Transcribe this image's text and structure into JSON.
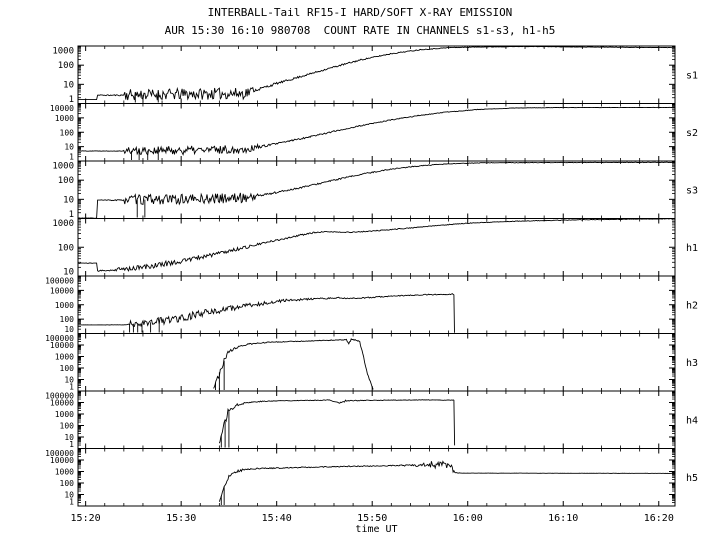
{
  "page": {
    "background": "#ffffff",
    "foreground": "#000000"
  },
  "header": {
    "title": "INTERBALL-Tail RF15-I HARD/SOFT X-RAY EMISSION",
    "subtitle": "AUR 15:30 16:10 980708  COUNT RATE IN CHANNELS s1-s3, h1-h5"
  },
  "chart_data": {
    "type": "line",
    "title": "INTERBALL-Tail RF15-I HARD/SOFT X-RAY EMISSION",
    "subtitle": "AUR 15:30 16:10 980708  COUNT RATE IN CHANNELS s1-s3, h1-h5",
    "xlabel": "time UT",
    "ylabel": "",
    "x_axis": {
      "start_minutes_after_1520": -0.8,
      "end_minutes_after_1520": 61.7,
      "minor_tick_every_minutes": 2,
      "major_ticks": [
        {
          "t": 0,
          "label": "15:20"
        },
        {
          "t": 10,
          "label": "15:30"
        },
        {
          "t": 20,
          "label": "15:40"
        },
        {
          "t": 30,
          "label": "15:50"
        },
        {
          "t": 40,
          "label": "16:00"
        },
        {
          "t": 50,
          "label": "16:10"
        },
        {
          "t": 60,
          "label": "16:20"
        }
      ]
    },
    "panels": [
      {
        "label": "s1",
        "y_log_range": [
          0,
          3
        ],
        "noise_seed": 11,
        "y_tick_labels": [
          {
            "exp": 3,
            "label": "1000"
          },
          {
            "exp": 2,
            "label": "100"
          },
          {
            "exp": 1,
            "label": "10"
          },
          {
            "exp": 0,
            "label": "1"
          }
        ],
        "points": [
          [
            -0.8,
            1.6,
            0
          ],
          [
            1.15,
            1.6,
            0
          ],
          [
            1.25,
            2.7,
            0.03
          ],
          [
            3.8,
            2.7,
            0.03
          ],
          [
            4.0,
            2.8,
            0.3
          ],
          [
            9,
            3.0,
            0.3
          ],
          [
            16.5,
            3.4,
            0.28
          ],
          [
            17.5,
            4.5,
            0.07
          ],
          [
            20,
            11,
            0.05
          ],
          [
            23,
            30,
            0.04
          ],
          [
            26,
            80,
            0.04
          ],
          [
            29,
            200,
            0.03
          ],
          [
            32,
            400,
            0.025
          ],
          [
            35,
            640,
            0.02
          ],
          [
            38,
            820,
            0.015
          ],
          [
            41,
            890,
            0.012
          ],
          [
            46,
            940,
            0.01
          ],
          [
            61.7,
            820,
            0.008
          ]
        ],
        "dropout_times": [
          5.2,
          6.0,
          7.6
        ]
      },
      {
        "label": "s2",
        "y_log_range": [
          0,
          4
        ],
        "noise_seed": 22,
        "y_tick_labels": [
          {
            "exp": 4,
            "label": "10000"
          },
          {
            "exp": 3,
            "label": "1000"
          },
          {
            "exp": 2,
            "label": "100"
          },
          {
            "exp": 1,
            "label": "10"
          },
          {
            "exp": 0,
            "label": "1"
          }
        ],
        "points": [
          [
            -0.8,
            5,
            0.02
          ],
          [
            3.8,
            5,
            0.02
          ],
          [
            4,
            5.2,
            0.3
          ],
          [
            10,
            5.5,
            0.3
          ],
          [
            16.5,
            6.5,
            0.26
          ],
          [
            18,
            9,
            0.08
          ],
          [
            20,
            16,
            0.06
          ],
          [
            23,
            42,
            0.05
          ],
          [
            26,
            115,
            0.04
          ],
          [
            29,
            300,
            0.035
          ],
          [
            32,
            720,
            0.03
          ],
          [
            35,
            1500,
            0.025
          ],
          [
            38,
            2600,
            0.02
          ],
          [
            41,
            3800,
            0.015
          ],
          [
            45,
            4900,
            0.012
          ],
          [
            50,
            5200,
            0.01
          ],
          [
            61.7,
            5300,
            0.008
          ]
        ],
        "dropout_times": [
          4.8,
          5.6,
          6.5,
          7.6
        ]
      },
      {
        "label": "s3",
        "y_log_range": [
          0,
          3
        ],
        "noise_seed": 33,
        "y_tick_labels": [
          {
            "exp": 3,
            "label": "1000"
          },
          {
            "exp": 2,
            "label": "100"
          },
          {
            "exp": 1,
            "label": "10"
          },
          {
            "exp": 0,
            "label": "1"
          }
        ],
        "points": [
          [
            -0.8,
            1.05,
            0.01
          ],
          [
            1.15,
            1.05,
            0.01
          ],
          [
            1.25,
            9,
            0.03
          ],
          [
            3.8,
            9,
            0.03
          ],
          [
            4,
            9.5,
            0.26
          ],
          [
            10,
            10,
            0.26
          ],
          [
            16.5,
            12,
            0.24
          ],
          [
            18,
            15,
            0.06
          ],
          [
            20,
            23,
            0.05
          ],
          [
            23,
            46,
            0.04
          ],
          [
            26,
            100,
            0.035
          ],
          [
            29,
            210,
            0.03
          ],
          [
            32,
            380,
            0.025
          ],
          [
            35,
            560,
            0.02
          ],
          [
            38,
            710,
            0.015
          ],
          [
            42,
            810,
            0.012
          ],
          [
            61.7,
            860,
            0.008
          ]
        ],
        "dropout_times": [
          5.4,
          6.2
        ]
      },
      {
        "label": "h1",
        "y_log_range": [
          1,
          3
        ],
        "noise_seed": 44,
        "y_tick_labels": [
          {
            "exp": 3,
            "label": "1000"
          },
          {
            "exp": 2,
            "label": "100"
          },
          {
            "exp": 1,
            "label": "10"
          }
        ],
        "points": [
          [
            -0.8,
            28,
            0.01
          ],
          [
            1.15,
            28,
            0.01
          ],
          [
            1.25,
            15,
            0.02
          ],
          [
            3,
            16,
            0.08
          ],
          [
            6,
            20,
            0.1
          ],
          [
            10,
            33,
            0.08
          ],
          [
            14,
            62,
            0.06
          ],
          [
            17,
            105,
            0.04
          ],
          [
            20,
            175,
            0.03
          ],
          [
            22.5,
            265,
            0.025
          ],
          [
            24,
            325,
            0.02
          ],
          [
            25.5,
            345,
            0.015
          ],
          [
            27,
            330,
            0.015
          ],
          [
            28.5,
            340,
            0.015
          ],
          [
            31,
            385,
            0.015
          ],
          [
            34,
            470,
            0.012
          ],
          [
            37,
            575,
            0.012
          ],
          [
            40,
            690,
            0.01
          ],
          [
            45,
            805,
            0.01
          ],
          [
            52,
            905,
            0.008
          ],
          [
            61.7,
            985,
            0.006
          ]
        ],
        "dropout_times": []
      },
      {
        "label": "h2",
        "y_log_range": [
          1,
          5
        ],
        "noise_seed": 55,
        "y_tick_labels": [
          {
            "exp": 5,
            "label": "100000"
          },
          {
            "exp": 4,
            "label": "10000"
          },
          {
            "exp": 3,
            "label": "1000"
          },
          {
            "exp": 2,
            "label": "100"
          },
          {
            "exp": 1,
            "label": "10"
          }
        ],
        "points": [
          [
            -0.8,
            40,
            0.008
          ],
          [
            4.2,
            40,
            0.01
          ],
          [
            4.5,
            45,
            0.22
          ],
          [
            7,
            62,
            0.28
          ],
          [
            10,
            125,
            0.26
          ],
          [
            13,
            300,
            0.2
          ],
          [
            16,
            700,
            0.15
          ],
          [
            19,
            1400,
            0.1
          ],
          [
            21,
            2000,
            0.07
          ],
          [
            24,
            2600,
            0.05
          ],
          [
            26.5,
            2950,
            0.04
          ],
          [
            28,
            2750,
            0.04
          ],
          [
            30,
            3300,
            0.035
          ],
          [
            33,
            4300,
            0.03
          ],
          [
            35.5,
            5000,
            0.03
          ],
          [
            38.3,
            5300,
            0.045
          ],
          [
            38.55,
            5200,
            0.02
          ],
          [
            38.62,
            11,
            0
          ]
        ],
        "dropout_times": [
          4.6,
          5.0,
          5.45,
          5.9,
          6.8,
          7.7
        ]
      },
      {
        "label": "h3",
        "y_log_range": [
          0,
          5
        ],
        "noise_seed": 66,
        "y_tick_labels": [
          {
            "exp": 5,
            "label": "100000"
          },
          {
            "exp": 4,
            "label": "10000"
          },
          {
            "exp": 3,
            "label": "1000"
          },
          {
            "exp": 2,
            "label": "100"
          },
          {
            "exp": 1,
            "label": "10"
          },
          {
            "exp": 0,
            "label": "1"
          }
        ],
        "points": [
          [
            13.4,
            2,
            0.1
          ],
          [
            13.8,
            15,
            0.3
          ],
          [
            14.3,
            200,
            0.22
          ],
          [
            15,
            2500,
            0.13
          ],
          [
            16,
            8000,
            0.07
          ],
          [
            17.5,
            13000,
            0.05
          ],
          [
            19,
            17000,
            0.04
          ],
          [
            21,
            20000,
            0.03
          ],
          [
            23,
            22000,
            0.03
          ],
          [
            25,
            25500,
            0.03
          ],
          [
            26.5,
            27000,
            0.03
          ],
          [
            27.3,
            29500,
            0.04
          ],
          [
            27.55,
            12000,
            0.08
          ],
          [
            27.8,
            30500,
            0.05
          ],
          [
            28.4,
            26500,
            0.04
          ],
          [
            28.7,
            18000,
            0.08
          ],
          [
            29.1,
            900,
            0.15
          ],
          [
            29.6,
            18,
            0.15
          ],
          [
            30.1,
            1.6,
            0.05
          ]
        ],
        "dropout_times": [
          13.6,
          14.0,
          14.5
        ]
      },
      {
        "label": "h4",
        "y_log_range": [
          0,
          5
        ],
        "noise_seed": 77,
        "y_tick_labels": [
          {
            "exp": 5,
            "label": "100000"
          },
          {
            "exp": 4,
            "label": "10000"
          },
          {
            "exp": 3,
            "label": "1000"
          },
          {
            "exp": 2,
            "label": "100"
          },
          {
            "exp": 1,
            "label": "10"
          },
          {
            "exp": 0,
            "label": "1"
          }
        ],
        "points": [
          [
            14.0,
            3,
            0.1
          ],
          [
            14.4,
            60,
            0.28
          ],
          [
            14.9,
            1500,
            0.18
          ],
          [
            15.6,
            5200,
            0.1
          ],
          [
            16.5,
            9000,
            0.06
          ],
          [
            18,
            12000,
            0.04
          ],
          [
            20,
            14000,
            0.03
          ],
          [
            23,
            15200,
            0.028
          ],
          [
            25.5,
            16500,
            0.028
          ],
          [
            26.6,
            9000,
            0.07
          ],
          [
            27.2,
            14000,
            0.04
          ],
          [
            29,
            15000,
            0.03
          ],
          [
            32,
            16000,
            0.022
          ],
          [
            35,
            16800,
            0.02
          ],
          [
            38.3,
            16000,
            0.03
          ],
          [
            38.55,
            15800,
            0.02
          ],
          [
            38.63,
            1.8,
            0
          ]
        ],
        "dropout_times": [
          14.2,
          14.6,
          15.0
        ]
      },
      {
        "label": "h5",
        "y_log_range": [
          0,
          5
        ],
        "noise_seed": 88,
        "y_tick_labels": [
          {
            "exp": 5,
            "label": "100000"
          },
          {
            "exp": 4,
            "label": "10000"
          },
          {
            "exp": 3,
            "label": "1000"
          },
          {
            "exp": 2,
            "label": "100"
          },
          {
            "exp": 1,
            "label": "10"
          },
          {
            "exp": 0,
            "label": "1"
          }
        ],
        "points": [
          [
            14.0,
            2,
            0.1
          ],
          [
            14.4,
            30,
            0.22
          ],
          [
            14.9,
            300,
            0.13
          ],
          [
            15.6,
            900,
            0.09
          ],
          [
            16.5,
            1400,
            0.06
          ],
          [
            18,
            1800,
            0.05
          ],
          [
            21,
            2100,
            0.04
          ],
          [
            24,
            2400,
            0.04
          ],
          [
            27,
            2700,
            0.04
          ],
          [
            30,
            3000,
            0.045
          ],
          [
            33,
            3300,
            0.06
          ],
          [
            34.5,
            3600,
            0.15
          ],
          [
            36,
            3900,
            0.3
          ],
          [
            37.5,
            4100,
            0.35
          ],
          [
            38.3,
            3400,
            0.25
          ],
          [
            38.55,
            850,
            0.03
          ],
          [
            39.2,
            720,
            0.008
          ],
          [
            61.7,
            690,
            0.006
          ]
        ],
        "dropout_times": [
          14.2,
          14.5
        ]
      }
    ]
  }
}
